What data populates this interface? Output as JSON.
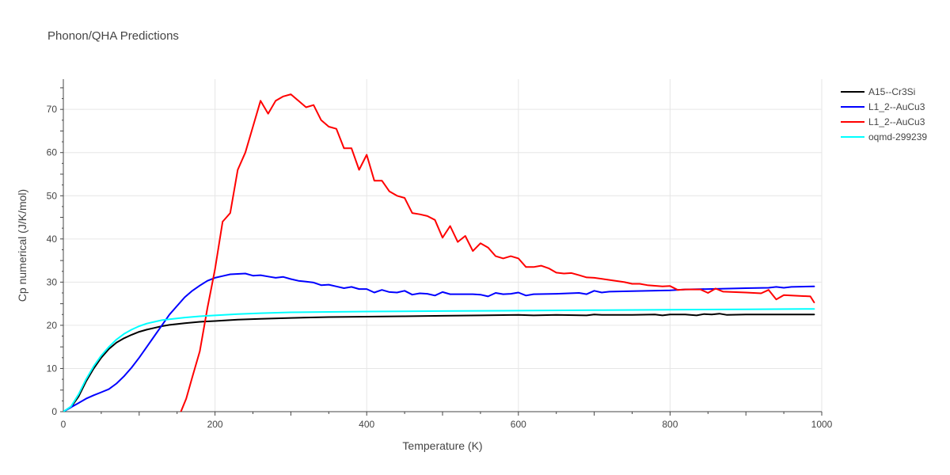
{
  "chart_data": {
    "type": "line",
    "title": "Phonon/QHA Predictions",
    "xlabel": "Temperature (K)",
    "ylabel": "Cp numerical (J/K/mol)",
    "xlim": [
      0,
      1000
    ],
    "ylim": [
      0,
      77
    ],
    "xticks": [
      0,
      200,
      400,
      600,
      800,
      1000
    ],
    "yticks": [
      0,
      10,
      20,
      30,
      40,
      50,
      60,
      70
    ],
    "grid": true,
    "legend_position": "top-right",
    "series": [
      {
        "name": "A15--Cr3Si",
        "color": "#000000",
        "points": [
          [
            0,
            0
          ],
          [
            10,
            1
          ],
          [
            20,
            3.5
          ],
          [
            30,
            7
          ],
          [
            40,
            10
          ],
          [
            50,
            12.5
          ],
          [
            60,
            14.5
          ],
          [
            70,
            16
          ],
          [
            80,
            17
          ],
          [
            90,
            17.8
          ],
          [
            100,
            18.5
          ],
          [
            110,
            19
          ],
          [
            120,
            19.4
          ],
          [
            130,
            19.8
          ],
          [
            140,
            20.1
          ],
          [
            160,
            20.5
          ],
          [
            180,
            20.8
          ],
          [
            200,
            21
          ],
          [
            230,
            21.3
          ],
          [
            260,
            21.5
          ],
          [
            300,
            21.7
          ],
          [
            350,
            21.9
          ],
          [
            400,
            22
          ],
          [
            450,
            22.1
          ],
          [
            500,
            22.2
          ],
          [
            550,
            22.3
          ],
          [
            600,
            22.4
          ],
          [
            620,
            22.3
          ],
          [
            650,
            22.4
          ],
          [
            690,
            22.3
          ],
          [
            700,
            22.5
          ],
          [
            710,
            22.4
          ],
          [
            750,
            22.4
          ],
          [
            780,
            22.5
          ],
          [
            790,
            22.3
          ],
          [
            800,
            22.5
          ],
          [
            820,
            22.5
          ],
          [
            835,
            22.3
          ],
          [
            845,
            22.6
          ],
          [
            855,
            22.5
          ],
          [
            865,
            22.7
          ],
          [
            875,
            22.4
          ],
          [
            900,
            22.5
          ],
          [
            950,
            22.5
          ],
          [
            990,
            22.5
          ]
        ]
      },
      {
        "name": "L1_2--AuCu3",
        "color": "#0000ff",
        "points": [
          [
            0,
            0
          ],
          [
            10,
            1
          ],
          [
            20,
            2
          ],
          [
            30,
            3
          ],
          [
            40,
            3.8
          ],
          [
            50,
            4.5
          ],
          [
            60,
            5.2
          ],
          [
            70,
            6.5
          ],
          [
            80,
            8.2
          ],
          [
            90,
            10.2
          ],
          [
            100,
            12.5
          ],
          [
            110,
            15
          ],
          [
            120,
            17.5
          ],
          [
            130,
            20
          ],
          [
            140,
            22.5
          ],
          [
            150,
            24.5
          ],
          [
            160,
            26.5
          ],
          [
            170,
            28
          ],
          [
            180,
            29.2
          ],
          [
            190,
            30.3
          ],
          [
            200,
            31
          ],
          [
            210,
            31.4
          ],
          [
            220,
            31.8
          ],
          [
            230,
            31.9
          ],
          [
            240,
            32
          ],
          [
            250,
            31.5
          ],
          [
            260,
            31.6
          ],
          [
            270,
            31.3
          ],
          [
            280,
            31
          ],
          [
            290,
            31.2
          ],
          [
            300,
            30.7
          ],
          [
            310,
            30.3
          ],
          [
            320,
            30.1
          ],
          [
            330,
            29.9
          ],
          [
            340,
            29.3
          ],
          [
            350,
            29.4
          ],
          [
            360,
            29
          ],
          [
            370,
            28.6
          ],
          [
            380,
            28.9
          ],
          [
            390,
            28.4
          ],
          [
            400,
            28.4
          ],
          [
            410,
            27.6
          ],
          [
            420,
            28.2
          ],
          [
            430,
            27.7
          ],
          [
            440,
            27.6
          ],
          [
            450,
            28
          ],
          [
            460,
            27.1
          ],
          [
            470,
            27.4
          ],
          [
            480,
            27.3
          ],
          [
            490,
            26.9
          ],
          [
            500,
            27.7
          ],
          [
            510,
            27.2
          ],
          [
            520,
            27.2
          ],
          [
            530,
            27.2
          ],
          [
            540,
            27.2
          ],
          [
            550,
            27.1
          ],
          [
            560,
            26.7
          ],
          [
            570,
            27.5
          ],
          [
            580,
            27.2
          ],
          [
            590,
            27.3
          ],
          [
            600,
            27.6
          ],
          [
            610,
            26.9
          ],
          [
            620,
            27.2
          ],
          [
            650,
            27.3
          ],
          [
            680,
            27.5
          ],
          [
            690,
            27.2
          ],
          [
            700,
            28
          ],
          [
            710,
            27.6
          ],
          [
            720,
            27.8
          ],
          [
            750,
            27.9
          ],
          [
            800,
            28.1
          ],
          [
            820,
            28.3
          ],
          [
            850,
            28.4
          ],
          [
            900,
            28.6
          ],
          [
            930,
            28.7
          ],
          [
            940,
            28.9
          ],
          [
            950,
            28.7
          ],
          [
            960,
            28.9
          ],
          [
            990,
            29
          ]
        ]
      },
      {
        "name": "L1_2--AuCu3",
        "color": "#ff0000",
        "points": [
          [
            155,
            0
          ],
          [
            162,
            3
          ],
          [
            170,
            8
          ],
          [
            180,
            14
          ],
          [
            190,
            24
          ],
          [
            200,
            33
          ],
          [
            210,
            44
          ],
          [
            220,
            46
          ],
          [
            230,
            56
          ],
          [
            240,
            60
          ],
          [
            250,
            66
          ],
          [
            260,
            72
          ],
          [
            270,
            69
          ],
          [
            280,
            72
          ],
          [
            290,
            73
          ],
          [
            300,
            73.5
          ],
          [
            310,
            72
          ],
          [
            320,
            70.5
          ],
          [
            330,
            71
          ],
          [
            340,
            67.5
          ],
          [
            350,
            66
          ],
          [
            360,
            65.5
          ],
          [
            370,
            61
          ],
          [
            380,
            61
          ],
          [
            390,
            56
          ],
          [
            400,
            59.5
          ],
          [
            410,
            53.5
          ],
          [
            420,
            53.5
          ],
          [
            430,
            51
          ],
          [
            440,
            50
          ],
          [
            450,
            49.5
          ],
          [
            460,
            46
          ],
          [
            470,
            45.7
          ],
          [
            480,
            45.3
          ],
          [
            490,
            44.4
          ],
          [
            500,
            40.3
          ],
          [
            510,
            43
          ],
          [
            520,
            39.3
          ],
          [
            530,
            40.7
          ],
          [
            540,
            37.2
          ],
          [
            550,
            39
          ],
          [
            560,
            38
          ],
          [
            570,
            36
          ],
          [
            580,
            35.5
          ],
          [
            590,
            36
          ],
          [
            600,
            35.5
          ],
          [
            610,
            33.5
          ],
          [
            620,
            33.5
          ],
          [
            630,
            33.8
          ],
          [
            640,
            33.2
          ],
          [
            650,
            32.2
          ],
          [
            660,
            32
          ],
          [
            670,
            32.1
          ],
          [
            680,
            31.6
          ],
          [
            690,
            31.1
          ],
          [
            700,
            31
          ],
          [
            720,
            30.5
          ],
          [
            740,
            30
          ],
          [
            750,
            29.6
          ],
          [
            760,
            29.6
          ],
          [
            770,
            29.3
          ],
          [
            790,
            29
          ],
          [
            800,
            29.1
          ],
          [
            810,
            28.2
          ],
          [
            820,
            28.3
          ],
          [
            830,
            28.3
          ],
          [
            840,
            28.3
          ],
          [
            850,
            27.5
          ],
          [
            860,
            28.5
          ],
          [
            870,
            27.8
          ],
          [
            900,
            27.6
          ],
          [
            920,
            27.4
          ],
          [
            930,
            28.2
          ],
          [
            940,
            26
          ],
          [
            950,
            27
          ],
          [
            960,
            26.9
          ],
          [
            985,
            26.7
          ],
          [
            990,
            25.3
          ]
        ]
      },
      {
        "name": "oqmd-299239",
        "color": "#00ffff",
        "points": [
          [
            0,
            0
          ],
          [
            10,
            1.2
          ],
          [
            20,
            4
          ],
          [
            30,
            7.5
          ],
          [
            40,
            10.5
          ],
          [
            50,
            13
          ],
          [
            60,
            15
          ],
          [
            70,
            16.7
          ],
          [
            80,
            18
          ],
          [
            90,
            19
          ],
          [
            100,
            19.8
          ],
          [
            110,
            20.4
          ],
          [
            120,
            20.8
          ],
          [
            130,
            21.2
          ],
          [
            140,
            21.4
          ],
          [
            160,
            21.8
          ],
          [
            180,
            22.1
          ],
          [
            200,
            22.3
          ],
          [
            230,
            22.6
          ],
          [
            260,
            22.8
          ],
          [
            300,
            23
          ],
          [
            350,
            23.1
          ],
          [
            400,
            23.2
          ],
          [
            500,
            23.3
          ],
          [
            600,
            23.4
          ],
          [
            700,
            23.5
          ],
          [
            800,
            23.6
          ],
          [
            900,
            23.7
          ],
          [
            990,
            23.8
          ]
        ]
      }
    ]
  }
}
